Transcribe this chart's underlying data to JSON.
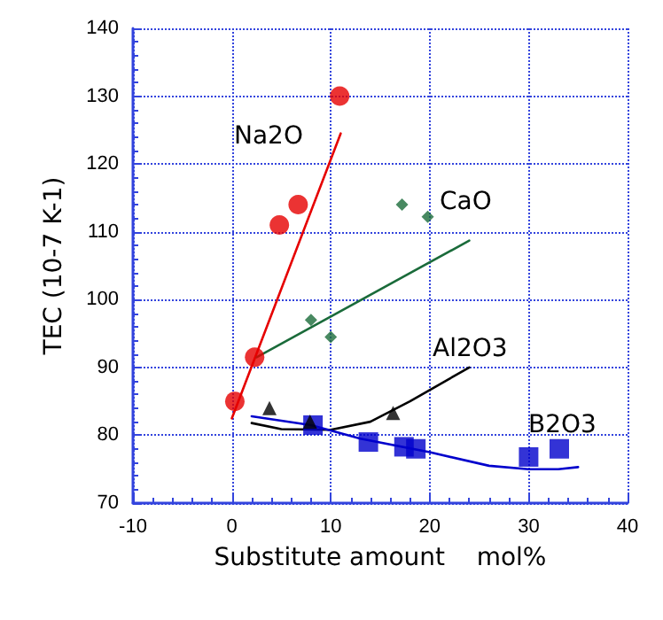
{
  "chart_data": {
    "type": "scatter",
    "xlabel": "Substitute amount    mol%",
    "ylabel": "TEC (10-7 K-1)",
    "xlim": [
      -10,
      40
    ],
    "xticks": [
      -10,
      0,
      10,
      20,
      30,
      40
    ],
    "ylim": [
      70,
      140
    ],
    "yticks": [
      70,
      80,
      90,
      100,
      110,
      120,
      130,
      140
    ],
    "grid": true,
    "series": [
      {
        "marker": "circle",
        "color": "#e60000",
        "x": [
          0.3,
          2.3,
          4.8,
          6.7,
          10.9
        ],
        "values": [
          85,
          91.5,
          111,
          114,
          130
        ]
      },
      {
        "marker": "diamond",
        "color": "#1a6b3a",
        "x": [
          8,
          10,
          17.2,
          19.8
        ],
        "values": [
          97,
          94.5,
          114,
          112.2
        ]
      },
      {
        "marker": "triangle",
        "color": "#000000",
        "x": [
          3.8,
          7.9,
          16.3
        ],
        "values": [
          84,
          82,
          83.3
        ]
      },
      {
        "marker": "square",
        "color": "#0000cc",
        "x": [
          8.2,
          13.8,
          17.4,
          18.6,
          30,
          33.1
        ],
        "values": [
          81.5,
          79,
          78.3,
          78,
          76.8,
          78
        ]
      },
      {
        "type": "line",
        "marker": "none",
        "color": "#e60000",
        "x": [
          0,
          11
        ],
        "values": [
          82.5,
          124.5
        ]
      },
      {
        "type": "line",
        "marker": "none",
        "color": "#1a6b3a",
        "x": [
          2.5,
          24
        ],
        "values": [
          91.5,
          108.7
        ]
      },
      {
        "type": "line",
        "marker": "none",
        "color": "#000000",
        "x": [
          2,
          5,
          10,
          14,
          18,
          24
        ],
        "values": [
          81.8,
          80.9,
          80.8,
          82,
          85,
          90
        ]
      },
      {
        "type": "line",
        "marker": "none",
        "color": "#0000cc",
        "x": [
          2,
          8,
          13,
          20,
          26,
          30,
          33,
          35
        ],
        "values": [
          82.8,
          81.5,
          79.5,
          77.5,
          75.5,
          75,
          75,
          75.3
        ]
      }
    ],
    "annotations": [
      "Na2O",
      "CaO",
      "Al2O3",
      "B2O3"
    ]
  }
}
